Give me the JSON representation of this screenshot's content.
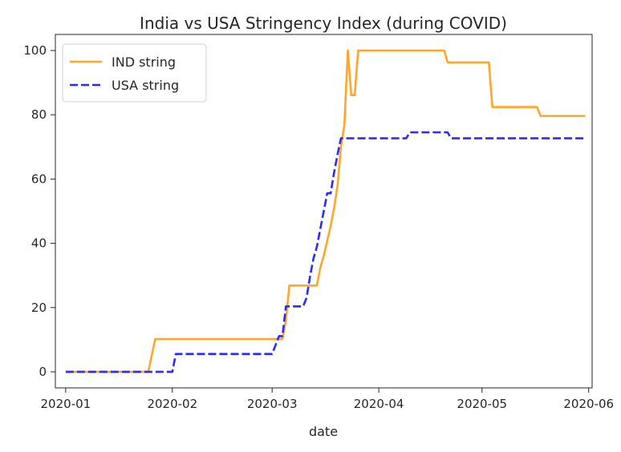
{
  "chart_data": {
    "type": "line",
    "title": "India vs USA Stringency Index (during COVID)",
    "xlabel": "date",
    "ylabel": "",
    "x_range": [
      "2019-12-29",
      "2020-06-02"
    ],
    "ylim": [
      -5,
      105
    ],
    "x_ticks": [
      "2020-01",
      "2020-02",
      "2020-03",
      "2020-04",
      "2020-05",
      "2020-06"
    ],
    "x_tick_dates": [
      "2020-01-01",
      "2020-02-01",
      "2020-03-01",
      "2020-04-01",
      "2020-05-01",
      "2020-06-01"
    ],
    "y_ticks": [
      0,
      20,
      40,
      60,
      80,
      100
    ],
    "grid": false,
    "legend_position": "top-left",
    "series": [
      {
        "name": "IND string",
        "color": "#FFA62B",
        "line_style": "solid",
        "x": [
          "2020-01-01",
          "2020-01-25",
          "2020-01-26",
          "2020-01-27",
          "2020-03-04",
          "2020-03-05",
          "2020-03-06",
          "2020-03-14",
          "2020-03-15",
          "2020-03-16",
          "2020-03-17",
          "2020-03-18",
          "2020-03-19",
          "2020-03-20",
          "2020-03-21",
          "2020-03-22",
          "2020-03-23",
          "2020-03-24",
          "2020-03-25",
          "2020-03-26",
          "2020-04-20",
          "2020-04-21",
          "2020-05-03",
          "2020-05-04",
          "2020-05-17",
          "2020-05-18",
          "2020-05-31"
        ],
        "values": [
          0,
          0,
          5,
          10.19,
          10.19,
          16,
          26.85,
          26.85,
          32.41,
          36.11,
          40.74,
          45.37,
          50.93,
          57.87,
          70,
          76.85,
          100,
          86.11,
          86.11,
          100,
          100,
          96.3,
          96.3,
          82.41,
          82.41,
          79.63,
          79.63
        ]
      },
      {
        "name": "USA string",
        "color": "#2B2BFF",
        "line_style": "dashed",
        "x": [
          "2020-01-01",
          "2020-02-01",
          "2020-02-02",
          "2020-03-01",
          "2020-03-03",
          "2020-03-04",
          "2020-03-05",
          "2020-03-10",
          "2020-03-11",
          "2020-03-12",
          "2020-03-13",
          "2020-03-14",
          "2020-03-15",
          "2020-03-16",
          "2020-03-17",
          "2020-03-18",
          "2020-03-19",
          "2020-03-20",
          "2020-03-21",
          "2020-03-22",
          "2020-04-09",
          "2020-04-10",
          "2020-04-21",
          "2020-04-22",
          "2020-05-31"
        ],
        "values": [
          0,
          0,
          5.56,
          5.56,
          11.11,
          11.11,
          20.37,
          20.37,
          23,
          29.63,
          35.19,
          38.89,
          44.44,
          50,
          55.56,
          55.56,
          62,
          67.59,
          72.69,
          72.69,
          72.69,
          74.54,
          74.54,
          72.69,
          72.69
        ]
      }
    ]
  }
}
